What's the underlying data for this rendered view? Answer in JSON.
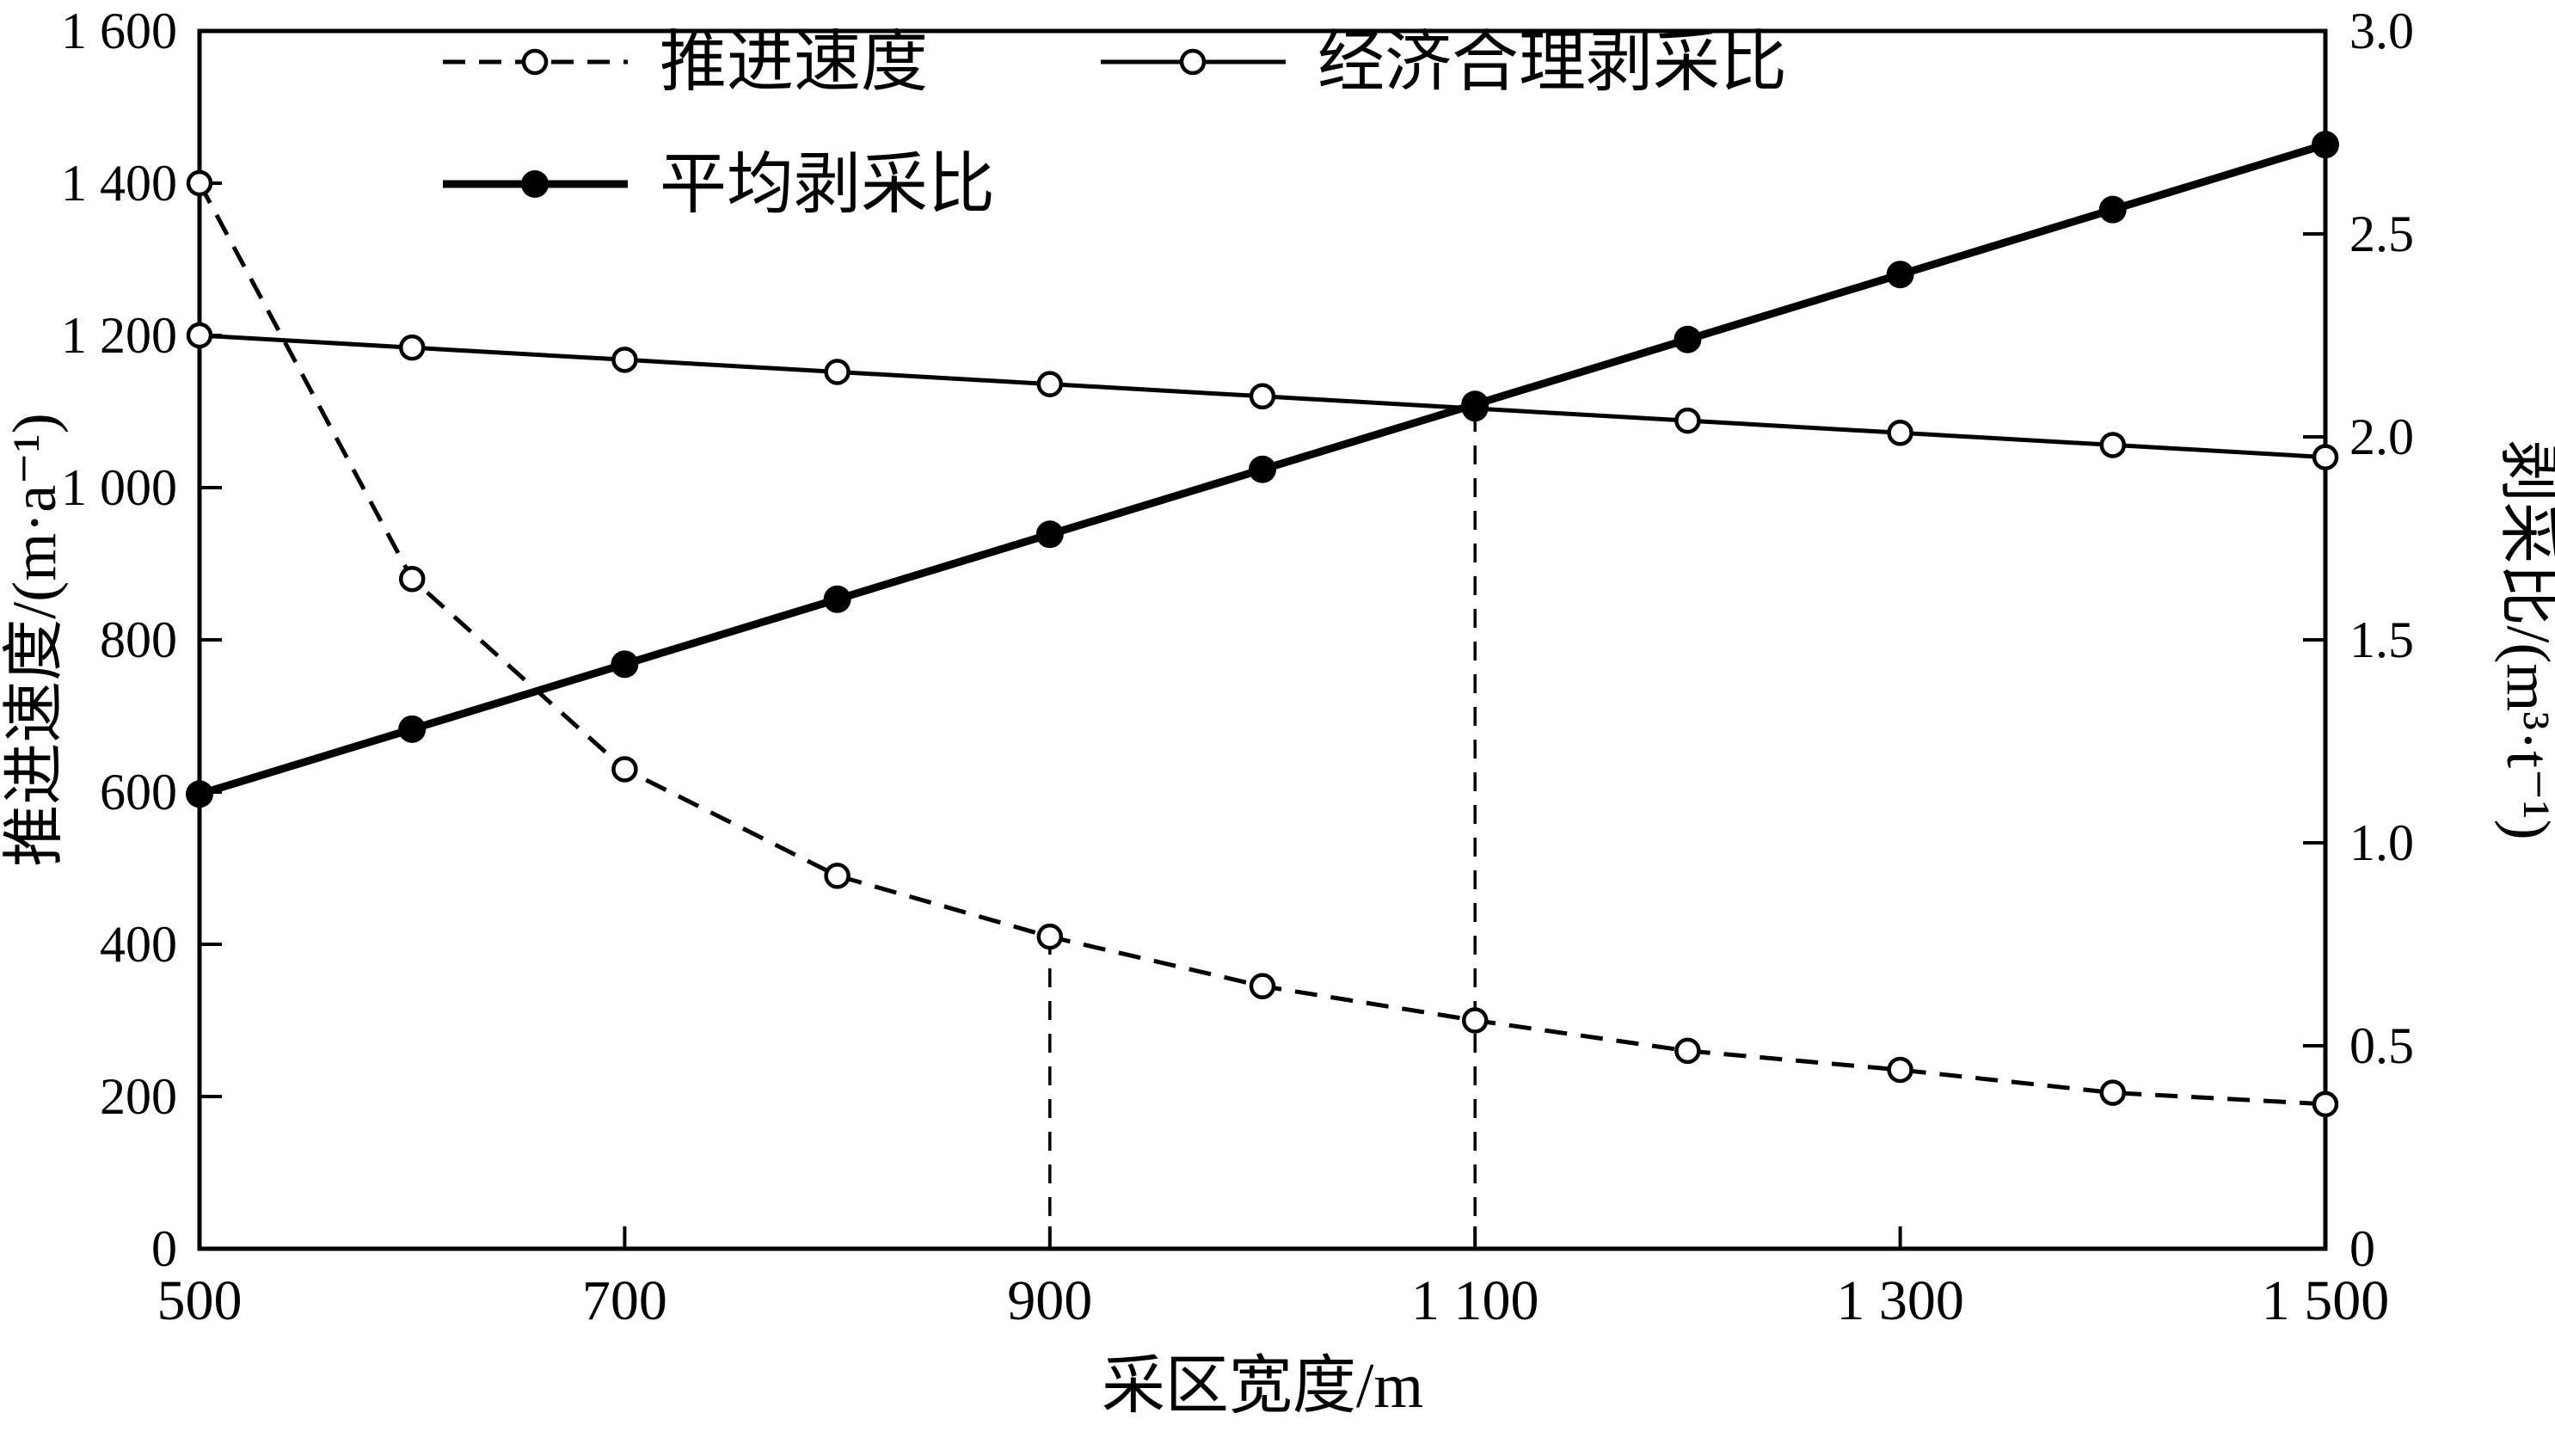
{
  "chart_data": {
    "type": "line",
    "title": "",
    "xlabel": "采区宽度/m",
    "y_left_label": "推进速度/(m·a⁻¹)",
    "y_right_label": "剥采比/(m³·t⁻¹)",
    "x_range": [
      500,
      1500
    ],
    "x_ticks": [
      500,
      700,
      900,
      1100,
      1300,
      1500
    ],
    "x_tick_labels": [
      "500",
      "700",
      "900",
      "1 100",
      "1 300",
      "1 500"
    ],
    "y_left_range": [
      0,
      1600
    ],
    "y_left_ticks": [
      0,
      200,
      400,
      600,
      800,
      1000,
      1200,
      1400,
      1600
    ],
    "y_left_tick_labels": [
      "0",
      "200",
      "400",
      "600",
      "800",
      "1 000",
      "1 200",
      "1 400",
      "1 600"
    ],
    "y_right_range": [
      0,
      3.0
    ],
    "y_right_ticks": [
      0,
      0.5,
      1.0,
      1.5,
      2.0,
      2.5,
      3.0
    ],
    "y_right_tick_labels": [
      "0",
      "0.5",
      "1.0",
      "1.5",
      "2.0",
      "2.5",
      "3.0"
    ],
    "x": [
      500,
      600,
      700,
      800,
      900,
      1000,
      1100,
      1200,
      1300,
      1400,
      1500
    ],
    "series": [
      {
        "name": "推进速度",
        "axis": "left",
        "line": "dashed",
        "marker": "open",
        "values": [
          1400,
          880,
          630,
          490,
          410,
          345,
          300,
          260,
          235,
          205,
          190
        ]
      },
      {
        "name": "经济合理剥采比",
        "axis": "right",
        "line": "solid",
        "marker": "open",
        "values": [
          2.25,
          2.22,
          2.19,
          2.16,
          2.13,
          2.1,
          2.07,
          2.04,
          2.01,
          1.98,
          1.95
        ]
      },
      {
        "name": "平均剥采比",
        "axis": "right",
        "line": "solid-thick",
        "marker": "filled",
        "values": [
          1.12,
          1.28,
          1.44,
          1.6,
          1.76,
          1.92,
          2.08,
          2.24,
          2.4,
          2.56,
          2.72
        ]
      }
    ],
    "guides": [
      {
        "x": 900,
        "axis": "left",
        "y": 410
      },
      {
        "x": 1100,
        "axis": "right",
        "y": 2.08
      }
    ],
    "colors": {
      "line": "#000000",
      "background": "#ffffff"
    },
    "grid": false,
    "legend_position": "top-inside"
  }
}
